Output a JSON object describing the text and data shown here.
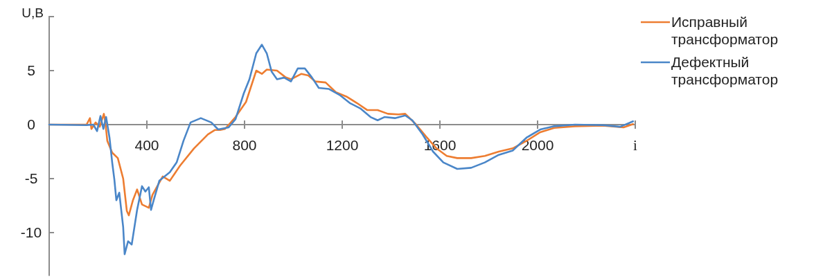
{
  "chart_data": {
    "type": "line",
    "ylabel": "U,B",
    "xlabel": "i",
    "xlim": [
      0,
      2400
    ],
    "ylim": [
      -14,
      10
    ],
    "xticks": [
      400,
      800,
      1200,
      1600,
      2000,
      {
        "value": 2400,
        "label": null
      }
    ],
    "yticks": [
      -10,
      -5,
      0,
      5,
      {
        "value": 10,
        "label": null
      }
    ],
    "legend": "right",
    "grid": false,
    "line_style": "solid",
    "marker": "none",
    "series": [
      {
        "name": "Исправный трансформатор",
        "color": "#ed7d31",
        "x": [
          0,
          153,
          167,
          173,
          190,
          207,
          224,
          230,
          238,
          258,
          281,
          303,
          318,
          326,
          343,
          360,
          380,
          408,
          423,
          465,
          494,
          536,
          593,
          650,
          678,
          700,
          720,
          763,
          806,
          848,
          871,
          891,
          933,
          967,
          990,
          1033,
          1061,
          1089,
          1132,
          1174,
          1217,
          1260,
          1302,
          1345,
          1387,
          1430,
          1458,
          1501,
          1543,
          1586,
          1628,
          1671,
          1728,
          1784,
          1841,
          1898,
          1955,
          2011,
          2068,
          2153,
          2267,
          2352,
          2391
        ],
        "values": [
          0,
          0,
          0.6,
          -0.4,
          0.2,
          -0.2,
          1.0,
          0.2,
          -1.5,
          -2.6,
          -3.1,
          -5,
          -8,
          -8.4,
          -7,
          -6,
          -7.4,
          -7.7,
          -6.5,
          -4.8,
          -5.2,
          -3.8,
          -2.2,
          -0.9,
          -0.5,
          -0.5,
          -0.4,
          0.7,
          2.1,
          5.0,
          4.7,
          5.1,
          5.0,
          4.4,
          4.2,
          4.7,
          4.55,
          4.0,
          3.9,
          3.0,
          2.6,
          2.0,
          1.35,
          1.35,
          1.0,
          0.95,
          1.0,
          0.05,
          -1.1,
          -2.2,
          -2.9,
          -3.1,
          -3.1,
          -2.9,
          -2.5,
          -2.2,
          -1.5,
          -0.7,
          -0.3,
          -0.15,
          -0.1,
          -0.25,
          0.05
        ]
      },
      {
        "name": "Дефектный трансформатор",
        "color": "#4a86c8",
        "x": [
          0,
          153,
          181,
          196,
          210,
          222,
          233,
          247,
          258,
          267,
          275,
          287,
          303,
          309,
          323,
          338,
          360,
          380,
          394,
          408,
          417,
          428,
          451,
          494,
          522,
          550,
          579,
          621,
          664,
          692,
          735,
          763,
          797,
          820,
          848,
          871,
          891,
          911,
          933,
          962,
          990,
          1018,
          1047,
          1075,
          1104,
          1146,
          1189,
          1231,
          1274,
          1316,
          1345,
          1373,
          1416,
          1458,
          1487,
          1529,
          1572,
          1614,
          1671,
          1728,
          1784,
          1841,
          1898,
          1955,
          2011,
          2068,
          2153,
          2267,
          2338,
          2391
        ],
        "values": [
          0,
          -0.05,
          0,
          -0.6,
          0.8,
          -0.4,
          0.7,
          -1.2,
          -3.5,
          -5.1,
          -7,
          -6.3,
          -9.5,
          -12,
          -10.8,
          -11.1,
          -7.9,
          -5.7,
          -6.2,
          -5.8,
          -7.9,
          -7,
          -5.2,
          -4.4,
          -3.5,
          -1.5,
          0.2,
          0.6,
          0.2,
          -0.45,
          -0.25,
          0.5,
          2.9,
          4.2,
          6.6,
          7.4,
          6.6,
          4.9,
          4.2,
          4.35,
          4.0,
          5.2,
          5.2,
          4.4,
          3.4,
          3.3,
          2.75,
          2.0,
          1.5,
          0.7,
          0.4,
          0.7,
          0.6,
          0.85,
          0.4,
          -0.9,
          -2.5,
          -3.5,
          -4.1,
          -4.0,
          -3.5,
          -2.8,
          -2.4,
          -1.2,
          -0.45,
          -0.15,
          0,
          -0.05,
          -0.2,
          0.3
        ]
      }
    ]
  }
}
